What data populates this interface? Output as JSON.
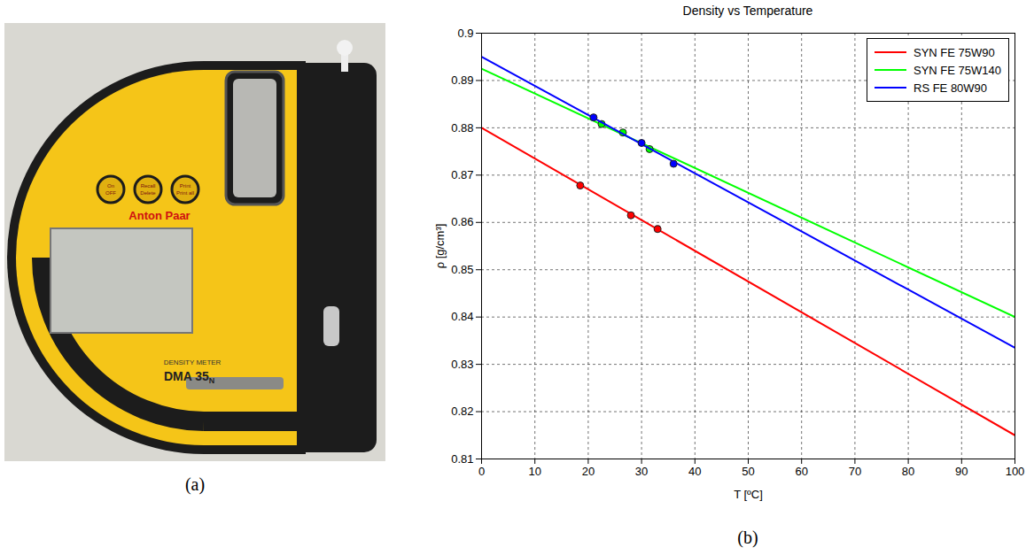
{
  "panels": [
    {
      "label": "(a)",
      "photo": {
        "brand": "Anton Paar",
        "model_line": "DENSITY METER",
        "model": "DMA 35",
        "model_suffix": "N",
        "buttons": [
          "On OFF",
          "Recall Delete",
          "Print Print all"
        ]
      }
    },
    {
      "label": "(b)"
    }
  ],
  "chart_data": {
    "type": "line",
    "title": "Density vs Temperature",
    "x_label": "T [ºC]",
    "y_label": "ρ [g/cm³]",
    "xlim": [
      0,
      100
    ],
    "xticks": [
      0,
      10,
      20,
      30,
      40,
      50,
      60,
      70,
      80,
      90,
      100
    ],
    "ylim": [
      0.81,
      0.9
    ],
    "yticks": [
      0.81,
      0.82,
      0.83,
      0.84,
      0.85,
      0.86,
      0.87,
      0.88,
      0.89,
      0.9
    ],
    "grid": true,
    "legend": "upper right",
    "series": [
      {
        "name": "SYN FE 75W90",
        "color": "#ff0000",
        "line_style": "solid",
        "marker": "o",
        "x": [
          0,
          100
        ],
        "values": [
          0.88,
          0.815
        ],
        "measured": {
          "x": [
            18.5,
            28,
            33
          ],
          "values": [
            0.8678,
            0.8615,
            0.8586
          ]
        }
      },
      {
        "name": "SYN FE 75W140",
        "color": "#00ff00",
        "line_style": "solid",
        "marker": "o",
        "x": [
          0,
          100
        ],
        "values": [
          0.8925,
          0.84
        ],
        "measured": {
          "x": [
            22.5,
            26.5,
            31.5
          ],
          "values": [
            0.8808,
            0.879,
            0.8755
          ]
        }
      },
      {
        "name": "RS FE 80W90",
        "color": "#0000ff",
        "line_style": "solid",
        "marker": "o",
        "x": [
          0,
          100
        ],
        "values": [
          0.895,
          0.8335
        ],
        "measured": {
          "x": [
            21,
            30,
            36
          ],
          "values": [
            0.8822,
            0.8768,
            0.8724
          ]
        }
      }
    ]
  }
}
